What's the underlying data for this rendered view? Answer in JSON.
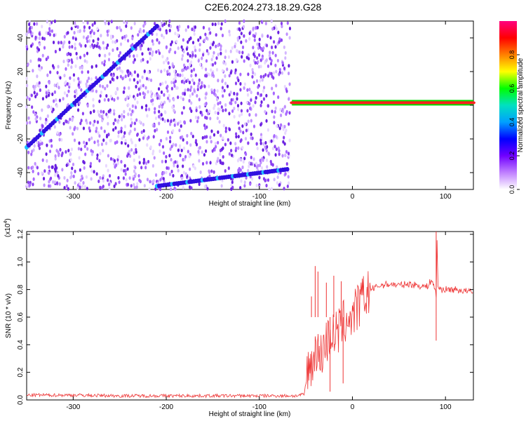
{
  "title": "C2E6.2024.273.18.29.G28",
  "chart_data": [
    {
      "type": "heatmap",
      "xlabel": "Height of straight line (km)",
      "ylabel": "Frequency (Hz)",
      "xlim": [
        -350,
        130
      ],
      "ylim": [
        -50,
        50
      ],
      "xticks": [
        -300,
        -200,
        -100,
        0,
        100
      ],
      "yticks": [
        -40,
        -20,
        0,
        20,
        40
      ],
      "colorbar": {
        "label": "Normalized spectral amplitude",
        "range": [
          0,
          1
        ],
        "ticks": [
          "0.0",
          "0.2",
          "0.4",
          "0.6",
          "0.8"
        ],
        "colors": [
          "#ffffff",
          "#c080ff",
          "#7000ff",
          "#0000ff",
          "#00a0ff",
          "#00e0c0",
          "#00ff00",
          "#ffff00",
          "#ff8000",
          "#ff0000",
          "#ff0080"
        ]
      },
      "noise_region_x": [
        -350,
        -67
      ],
      "features": [
        {
          "name": "rising trace",
          "x": [
            -350,
            -210
          ],
          "y": [
            -25,
            47
          ]
        },
        {
          "name": "lower trace",
          "x": [
            -210,
            -70
          ],
          "y": [
            -48,
            -38
          ]
        },
        {
          "name": "carrier line",
          "x": [
            -65,
            130
          ],
          "y": [
            1.5,
            1.5
          ]
        }
      ]
    },
    {
      "type": "line",
      "xlabel": "Height of straight line (km)",
      "ylabel": "SNR (10 * v/v)",
      "scale_label": "(x10",
      "scale_exp": "4",
      "scale_close": ")",
      "xlim": [
        -350,
        130
      ],
      "ylim": [
        0,
        1.22
      ],
      "xticks": [
        -300,
        -200,
        -100,
        0,
        100
      ],
      "yticks": [
        "0.0",
        "0.2",
        "0.4",
        "0.6",
        "0.8",
        "1.0",
        "1.2"
      ],
      "color": "#ee3333",
      "x": [
        -350,
        -300,
        -250,
        -200,
        -150,
        -100,
        -60,
        -52,
        -48,
        -45,
        -42,
        -40,
        -38,
        -35,
        -30,
        -25,
        -22,
        -20,
        -15,
        -10,
        -5,
        0,
        5,
        10,
        15,
        20,
        30,
        40,
        50,
        60,
        70,
        80,
        85,
        88,
        90,
        91,
        92,
        95,
        100,
        110,
        120,
        130
      ],
      "y": [
        0.035,
        0.035,
        0.03,
        0.03,
        0.03,
        0.03,
        0.03,
        0.04,
        0.2,
        0.3,
        0.2,
        0.45,
        0.35,
        0.3,
        0.4,
        0.45,
        0.5,
        0.45,
        0.5,
        0.55,
        0.6,
        0.6,
        0.66,
        0.72,
        0.76,
        0.8,
        0.83,
        0.84,
        0.83,
        0.84,
        0.83,
        0.82,
        0.87,
        0.82,
        0.75,
        1.15,
        0.82,
        0.8,
        0.8,
        0.8,
        0.79,
        0.78
      ],
      "spikes": [
        {
          "x": -40,
          "y": 0.97
        },
        {
          "x": -44,
          "y": 0.75
        },
        {
          "x": -37,
          "y": 0.93
        },
        {
          "x": -28,
          "y": 0.85
        },
        {
          "x": -20,
          "y": 0.9
        },
        {
          "x": -12,
          "y": 0.86
        },
        {
          "x": -24,
          "y": 0.06
        },
        {
          "x": -10,
          "y": 0.12
        },
        {
          "x": 90,
          "y": 0.43
        },
        {
          "x": 90,
          "y": 1.22
        }
      ]
    }
  ]
}
